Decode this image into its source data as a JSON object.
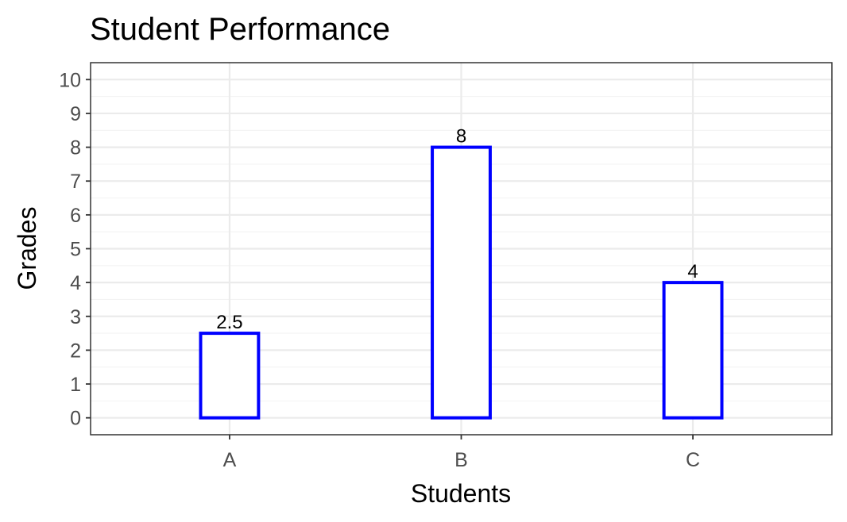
{
  "chart_data": {
    "type": "bar",
    "title": "Student Performance",
    "xlabel": "Students",
    "ylabel": "Grades",
    "categories": [
      "A",
      "B",
      "C"
    ],
    "values": [
      2.5,
      8,
      4
    ],
    "data_labels": [
      "2.5",
      "8",
      "4"
    ],
    "yticks": [
      0,
      1,
      2,
      3,
      4,
      5,
      6,
      7,
      8,
      9,
      10
    ],
    "ylim": [
      -0.5,
      10.5
    ],
    "grid": true,
    "legend": "none",
    "bar_fill": "#ffffff",
    "bar_outline": "#0000ff"
  }
}
